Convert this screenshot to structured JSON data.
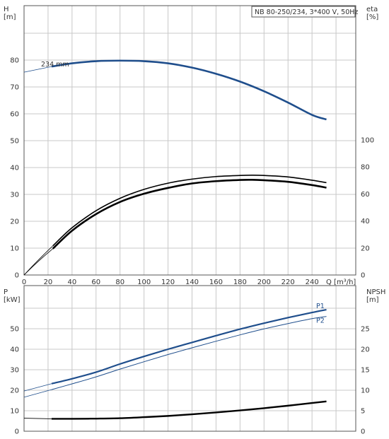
{
  "chart_data": [
    {
      "id": "top",
      "type": "line",
      "title": "NB 80-250/234, 3*400 V, 50Hz",
      "left_axis": {
        "label_lines": [
          "H",
          "[m]"
        ],
        "ticks": [
          0,
          10,
          20,
          30,
          40,
          50,
          60,
          70,
          80
        ],
        "range": [
          0,
          90
        ]
      },
      "right_axis": {
        "label_lines": [
          "eta",
          "[%]"
        ],
        "ticks": [
          0,
          20,
          40,
          60,
          80,
          100
        ],
        "range": [
          0,
          160
        ]
      },
      "x_axis": {
        "label": "Q [m³/h]",
        "ticks": [
          0,
          20,
          40,
          60,
          80,
          100,
          120,
          140,
          160,
          180,
          200,
          220,
          240
        ],
        "range": [
          0,
          270
        ]
      },
      "grid": true,
      "annotations": [
        {
          "text": "234 mm"
        }
      ],
      "series": [
        {
          "axis": "left",
          "color": "#1f4e8c",
          "width": 2.6,
          "x": [
            23,
            40,
            60,
            80,
            100,
            120,
            140,
            160,
            180,
            200,
            220,
            240,
            252
          ],
          "y": [
            77.6,
            78.8,
            79.6,
            79.8,
            79.6,
            78.8,
            77.2,
            74.9,
            72.0,
            68.4,
            64.2,
            59.6,
            57.9
          ]
        },
        {
          "axis": "left",
          "color": "#1f4e8c",
          "width": 0.8,
          "x": [
            0,
            23
          ],
          "y": [
            75.5,
            77.6
          ]
        },
        {
          "axis": "right",
          "color": "#000000",
          "width": 1.6,
          "x": [
            24,
            40,
            60,
            80,
            100,
            120,
            140,
            160,
            180,
            190,
            200,
            220,
            240,
            252
          ],
          "y": [
            21.6,
            35.0,
            47.6,
            56.8,
            63.4,
            68.0,
            71.0,
            72.9,
            73.7,
            73.9,
            73.7,
            72.6,
            70.2,
            68.4
          ]
        },
        {
          "axis": "right",
          "color": "#000000",
          "width": 2.6,
          "x": [
            24,
            40,
            60,
            80,
            100,
            120,
            140,
            160,
            180,
            190,
            200,
            220,
            240,
            252
          ],
          "y": [
            19.5,
            32.8,
            45.1,
            54.1,
            60.2,
            64.5,
            67.8,
            69.5,
            70.4,
            70.5,
            70.2,
            69.0,
            66.6,
            64.7
          ]
        },
        {
          "axis": "right",
          "color": "#000000",
          "width": 0.8,
          "x": [
            0,
            8,
            16,
            24
          ],
          "y": [
            0,
            7.5,
            14.7,
            21.6
          ]
        },
        {
          "axis": "right",
          "color": "#000000",
          "width": 0.8,
          "x": [
            0,
            8,
            16,
            24
          ],
          "y": [
            0,
            6.9,
            13.4,
            19.5
          ]
        }
      ]
    },
    {
      "id": "bottom",
      "type": "line",
      "left_axis": {
        "label_lines": [
          "P",
          "[kW]"
        ],
        "ticks": [
          0,
          10,
          20,
          30,
          40,
          50
        ],
        "range": [
          0,
          60
        ]
      },
      "right_axis": {
        "label_lines": [
          "NPSH",
          "[m]"
        ],
        "ticks": [
          0,
          5,
          10,
          15,
          20,
          25
        ],
        "range": [
          0,
          30.6
        ]
      },
      "x_axis": {
        "range": [
          0,
          270
        ]
      },
      "grid": true,
      "series": [
        {
          "name": "P1",
          "axis": "left",
          "color": "#1f4e8c",
          "width": 2.2,
          "x": [
            23,
            40,
            60,
            80,
            100,
            120,
            140,
            160,
            180,
            200,
            220,
            240,
            252
          ],
          "y": [
            23.2,
            25.6,
            28.8,
            32.8,
            36.5,
            40.0,
            43.3,
            46.6,
            49.8,
            52.7,
            55.4,
            57.9,
            59.3
          ]
        },
        {
          "name": "",
          "axis": "left",
          "color": "#1f4e8c",
          "width": 0.8,
          "x": [
            0,
            23
          ],
          "y": [
            19.6,
            23.2
          ]
        },
        {
          "name": "P2",
          "axis": "left",
          "color": "#1f4e8c",
          "width": 1.0,
          "x": [
            23,
            40,
            60,
            80,
            100,
            120,
            140,
            160,
            180,
            200,
            220,
            240,
            252
          ],
          "y": [
            20.3,
            23.1,
            26.5,
            30.3,
            33.9,
            37.4,
            40.7,
            43.9,
            47.0,
            49.9,
            52.5,
            54.9,
            56.0
          ]
        },
        {
          "name": "",
          "axis": "left",
          "color": "#1f4e8c",
          "width": 0.8,
          "x": [
            0,
            23
          ],
          "y": [
            16.6,
            20.3
          ]
        },
        {
          "name": "",
          "axis": "right",
          "color": "#000000",
          "width": 2.4,
          "x": [
            23,
            40,
            60,
            80,
            100,
            120,
            140,
            160,
            180,
            200,
            220,
            240,
            252
          ],
          "y": [
            3.03,
            3.03,
            3.08,
            3.18,
            3.43,
            3.73,
            4.13,
            4.58,
            5.07,
            5.62,
            6.23,
            6.88,
            7.28
          ]
        },
        {
          "name": "",
          "axis": "right",
          "color": "#000000",
          "width": 0.8,
          "x": [
            0,
            23
          ],
          "y": [
            3.18,
            3.03
          ]
        }
      ]
    }
  ]
}
